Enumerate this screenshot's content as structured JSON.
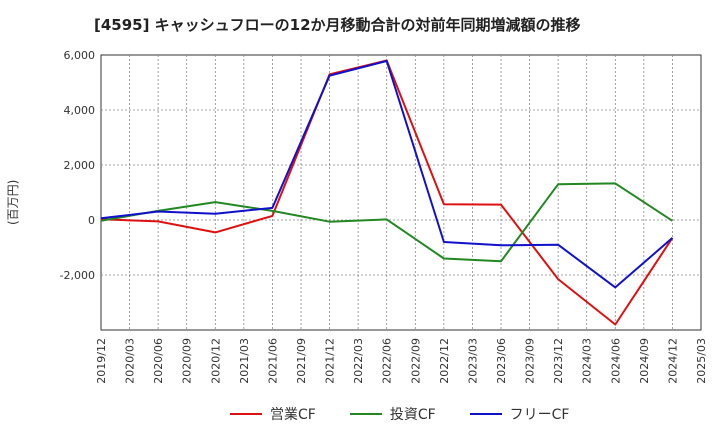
{
  "chart_data": {
    "type": "line",
    "title": "[4595]  キャッシュフローの12か月移動合計の対前年同期増減額の推移",
    "ylabel": "(百万円)",
    "xlabel": "",
    "ylim": [
      -4000,
      6000
    ],
    "y_ticks": [
      6000,
      4000,
      2000,
      0,
      -2000
    ],
    "y_tick_labels": [
      "6,000",
      "4,000",
      "2,000",
      "0",
      "-2,000"
    ],
    "categories": [
      "2019/12",
      "2020/03",
      "2020/06",
      "2020/09",
      "2020/12",
      "2021/03",
      "2021/06",
      "2021/09",
      "2021/12",
      "2022/03",
      "2022/06",
      "2022/09",
      "2022/12",
      "2023/03",
      "2023/06",
      "2023/09",
      "2023/12",
      "2024/03",
      "2024/06",
      "2024/09",
      "2024/12",
      "2025/03"
    ],
    "grid": true,
    "legend_position": "bottom",
    "series": [
      {
        "name": "営業CF",
        "color": "#dd1111",
        "points": [
          [
            "2019/12",
            30
          ],
          [
            "2020/06",
            -50
          ],
          [
            "2020/12",
            -450
          ],
          [
            "2021/06",
            150
          ],
          [
            "2021/12",
            5300
          ],
          [
            "2022/06",
            5800
          ],
          [
            "2022/12",
            570
          ],
          [
            "2023/06",
            560
          ],
          [
            "2023/12",
            -2150
          ],
          [
            "2024/06",
            -3800
          ],
          [
            "2024/12",
            -650
          ]
        ]
      },
      {
        "name": "投資CF",
        "color": "#228822",
        "points": [
          [
            "2019/12",
            -30
          ],
          [
            "2020/06",
            330
          ],
          [
            "2020/12",
            650
          ],
          [
            "2021/06",
            330
          ],
          [
            "2021/12",
            -60
          ],
          [
            "2022/06",
            20
          ],
          [
            "2022/12",
            -1400
          ],
          [
            "2023/06",
            -1500
          ],
          [
            "2023/12",
            1300
          ],
          [
            "2024/06",
            1330
          ],
          [
            "2024/12",
            -30
          ]
        ]
      },
      {
        "name": "フリーCF",
        "color": "#1111cc",
        "points": [
          [
            "2019/12",
            60
          ],
          [
            "2020/06",
            310
          ],
          [
            "2020/12",
            230
          ],
          [
            "2021/06",
            440
          ],
          [
            "2021/12",
            5250
          ],
          [
            "2022/06",
            5780
          ],
          [
            "2022/12",
            -800
          ],
          [
            "2023/06",
            -920
          ],
          [
            "2023/12",
            -900
          ],
          [
            "2024/06",
            -2450
          ],
          [
            "2024/12",
            -650
          ]
        ]
      }
    ]
  }
}
